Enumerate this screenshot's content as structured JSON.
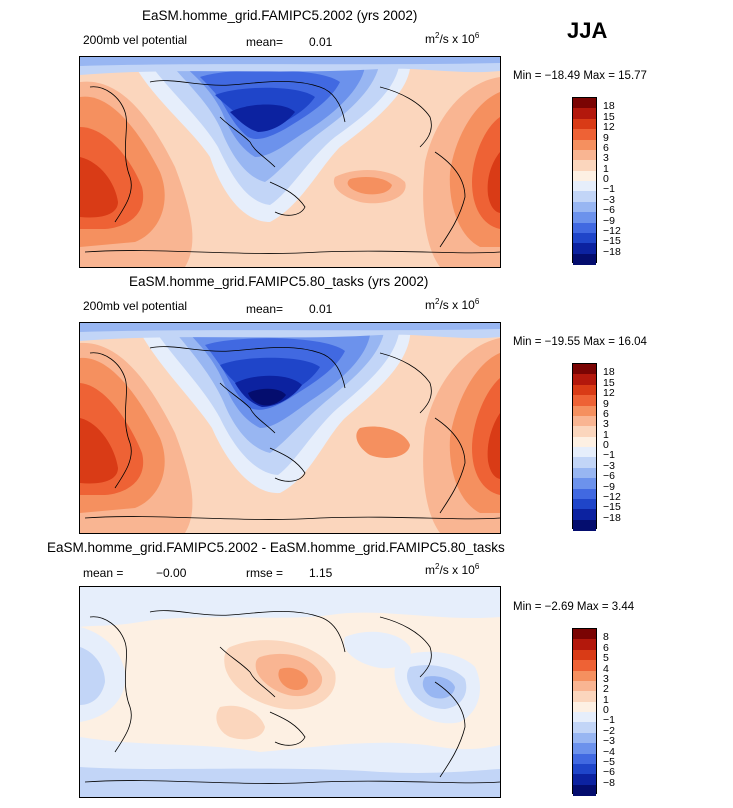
{
  "season": "JJA",
  "units_base": "m",
  "units_exp1": "2",
  "units_mid": "/s x 10",
  "units_exp2": "6",
  "panels": [
    {
      "title": "EaSM.homme_grid.FAMIPC5.2002 (yrs 2002)",
      "field": "200mb vel potential",
      "mean_label": "mean=",
      "mean_value": "0.01",
      "min_text": "Min = −18.49  Max =  15.77",
      "levels": [
        "18",
        "15",
        "12",
        "9",
        "6",
        "3",
        "1",
        "0",
        "−1",
        "−3",
        "−6",
        "−9",
        "−12",
        "−15",
        "−18"
      ],
      "colors": [
        "#7a0403",
        "#b3180c",
        "#d93b16",
        "#ee6235",
        "#f5905f",
        "#f9b592",
        "#fbd6bd",
        "#fdf0e3",
        "#e6eefb",
        "#c2d5f7",
        "#98b6f2",
        "#6c92ec",
        "#4169e1",
        "#1f45c9",
        "#0c22a0",
        "#040d6e"
      ]
    },
    {
      "title": "EaSM.homme_grid.FAMIPC5.80_tasks (yrs 2002)",
      "field": "200mb vel potential",
      "mean_label": "mean=",
      "mean_value": "0.01",
      "min_text": "Min = −19.55  Max =  16.04",
      "levels": [
        "18",
        "15",
        "12",
        "9",
        "6",
        "3",
        "1",
        "0",
        "−1",
        "−3",
        "−6",
        "−9",
        "−12",
        "−15",
        "−18"
      ],
      "colors": [
        "#7a0403",
        "#b3180c",
        "#d93b16",
        "#ee6235",
        "#f5905f",
        "#f9b592",
        "#fbd6bd",
        "#fdf0e3",
        "#e6eefb",
        "#c2d5f7",
        "#98b6f2",
        "#6c92ec",
        "#4169e1",
        "#1f45c9",
        "#0c22a0",
        "#040d6e"
      ]
    },
    {
      "title": "EaSM.homme_grid.FAMIPC5.2002 - EaSM.homme_grid.FAMIPC5.80_tasks",
      "field": "",
      "mean_label": "mean =",
      "mean_value": "−0.00",
      "rmse_label": "rmse =",
      "rmse_value": "1.15",
      "min_text": "Min = −2.69  Max =  3.44",
      "levels": [
        "8",
        "6",
        "5",
        "4",
        "3",
        "2",
        "1",
        "0",
        "−1",
        "−2",
        "−3",
        "−4",
        "−5",
        "−6",
        "−8"
      ],
      "colors": [
        "#7a0403",
        "#b3180c",
        "#d93b16",
        "#ee6235",
        "#f5905f",
        "#f9b592",
        "#fbd6bd",
        "#fdf0e3",
        "#e6eefb",
        "#c2d5f7",
        "#98b6f2",
        "#6c92ec",
        "#4169e1",
        "#1f45c9",
        "#0c22a0",
        "#040d6e"
      ]
    }
  ],
  "chart_data": [
    {
      "type": "heatmap",
      "title": "EaSM.homme_grid.FAMIPC5.2002 (yrs 2002)",
      "variable": "200mb vel potential",
      "units": "m2/s x 10^6",
      "season": "JJA",
      "mean": 0.01,
      "min": -18.49,
      "max": 15.77,
      "contour_levels": [
        -18,
        -15,
        -12,
        -9,
        -6,
        -3,
        -1,
        0,
        1,
        3,
        6,
        9,
        12,
        15,
        18
      ]
    },
    {
      "type": "heatmap",
      "title": "EaSM.homme_grid.FAMIPC5.80_tasks (yrs 2002)",
      "variable": "200mb vel potential",
      "units": "m2/s x 10^6",
      "season": "JJA",
      "mean": 0.01,
      "min": -19.55,
      "max": 16.04,
      "contour_levels": [
        -18,
        -15,
        -12,
        -9,
        -6,
        -3,
        -1,
        0,
        1,
        3,
        6,
        9,
        12,
        15,
        18
      ]
    },
    {
      "type": "heatmap",
      "title": "EaSM.homme_grid.FAMIPC5.2002 - EaSM.homme_grid.FAMIPC5.80_tasks",
      "units": "m2/s x 10^6",
      "season": "JJA",
      "mean": -0.0,
      "rmse": 1.15,
      "min": -2.69,
      "max": 3.44,
      "contour_levels": [
        -8,
        -6,
        -5,
        -4,
        -3,
        -2,
        -1,
        0,
        1,
        2,
        3,
        4,
        5,
        6,
        8
      ]
    }
  ]
}
